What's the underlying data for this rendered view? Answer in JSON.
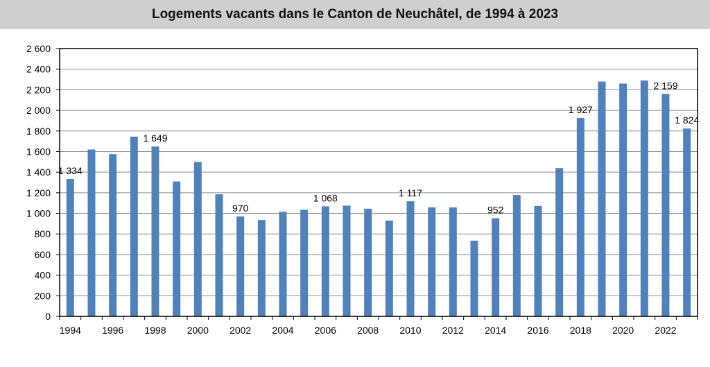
{
  "chart_data": {
    "type": "bar",
    "title": "Logements vacants dans le Canton de Neuchâtel, de 1994 à 2023",
    "xlabel": "",
    "ylabel": "",
    "ylim": [
      0,
      2600
    ],
    "grid": true,
    "y_ticks": [
      "0",
      "200",
      "400",
      "600",
      "800",
      "1 000",
      "1 200",
      "1 400",
      "1 600",
      "1 800",
      "2 000",
      "2 200",
      "2 400",
      "2 600"
    ],
    "x_tick_labels": [
      "1994",
      "1996",
      "1998",
      "2000",
      "2002",
      "2004",
      "2006",
      "2008",
      "2010",
      "2012",
      "2014",
      "2016",
      "2018",
      "2020",
      "2022"
    ],
    "categories": [
      "1994",
      "1995",
      "1996",
      "1997",
      "1998",
      "1999",
      "2000",
      "2001",
      "2002",
      "2003",
      "2004",
      "2005",
      "2006",
      "2007",
      "2008",
      "2009",
      "2010",
      "2011",
      "2012",
      "2013",
      "2014",
      "2015",
      "2016",
      "2017",
      "2018",
      "2019",
      "2020",
      "2021",
      "2022",
      "2023"
    ],
    "values": [
      1334,
      1620,
      1575,
      1745,
      1649,
      1310,
      1500,
      1185,
      970,
      935,
      1015,
      1035,
      1068,
      1075,
      1045,
      930,
      1117,
      1058,
      1058,
      735,
      952,
      1178,
      1072,
      1440,
      1927,
      2280,
      2260,
      2290,
      2159,
      1824
    ],
    "data_labels": [
      {
        "category": "1994",
        "text": "1 334"
      },
      {
        "category": "1998",
        "text": "1 649"
      },
      {
        "category": "2002",
        "text": "970"
      },
      {
        "category": "2006",
        "text": "1 068"
      },
      {
        "category": "2010",
        "text": "1 117"
      },
      {
        "category": "2014",
        "text": "952"
      },
      {
        "category": "2018",
        "text": "1 927"
      },
      {
        "category": "2022",
        "text": "2 159"
      },
      {
        "category": "2023",
        "text": "1 824"
      }
    ],
    "bar_color": "#4f81bd"
  }
}
